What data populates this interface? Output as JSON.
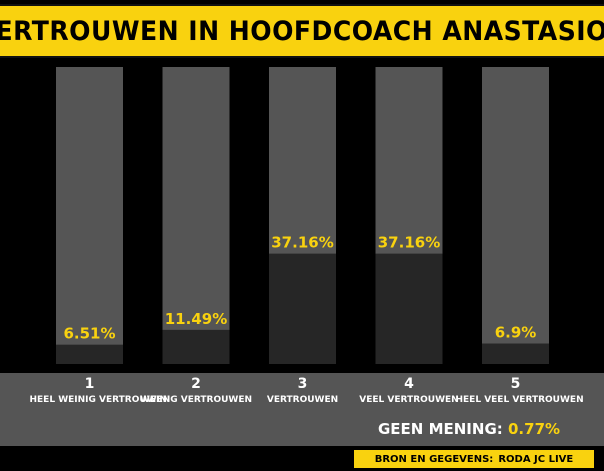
{
  "title": "VERTROUWEN IN HOOFDCOACH ANASTASIOU",
  "colors": {
    "accent": "#f9d20f",
    "bar_background": "#555555",
    "bar_fill": "#262626",
    "label": "#f9d20f"
  },
  "chart_data": {
    "type": "bar",
    "title": "VERTROUWEN IN HOOFDCOACH ANASTASIOU",
    "categories": [
      "1",
      "2",
      "3",
      "4",
      "5"
    ],
    "category_labels": [
      "HEEL WEINIG VERTROUWEN",
      "WEINIG VERTROUWEN",
      "VERTROUWEN",
      "VEEL VERTROUWEN",
      "HEEL VEEL VERTROUWEN"
    ],
    "values": [
      6.51,
      11.49,
      37.16,
      37.16,
      6.9
    ],
    "data_labels": [
      "6.51%",
      "11.49%",
      "37.16%",
      "37.16%",
      "6.9%"
    ],
    "ylim": [
      0,
      100
    ],
    "grid": false,
    "xlabel": "",
    "ylabel": ""
  },
  "note": {
    "label": "GEEN MENING:",
    "value": "0.77%"
  },
  "source": {
    "label": "BRON EN GEGEVENS:",
    "value": "RODA JC LIVE"
  }
}
